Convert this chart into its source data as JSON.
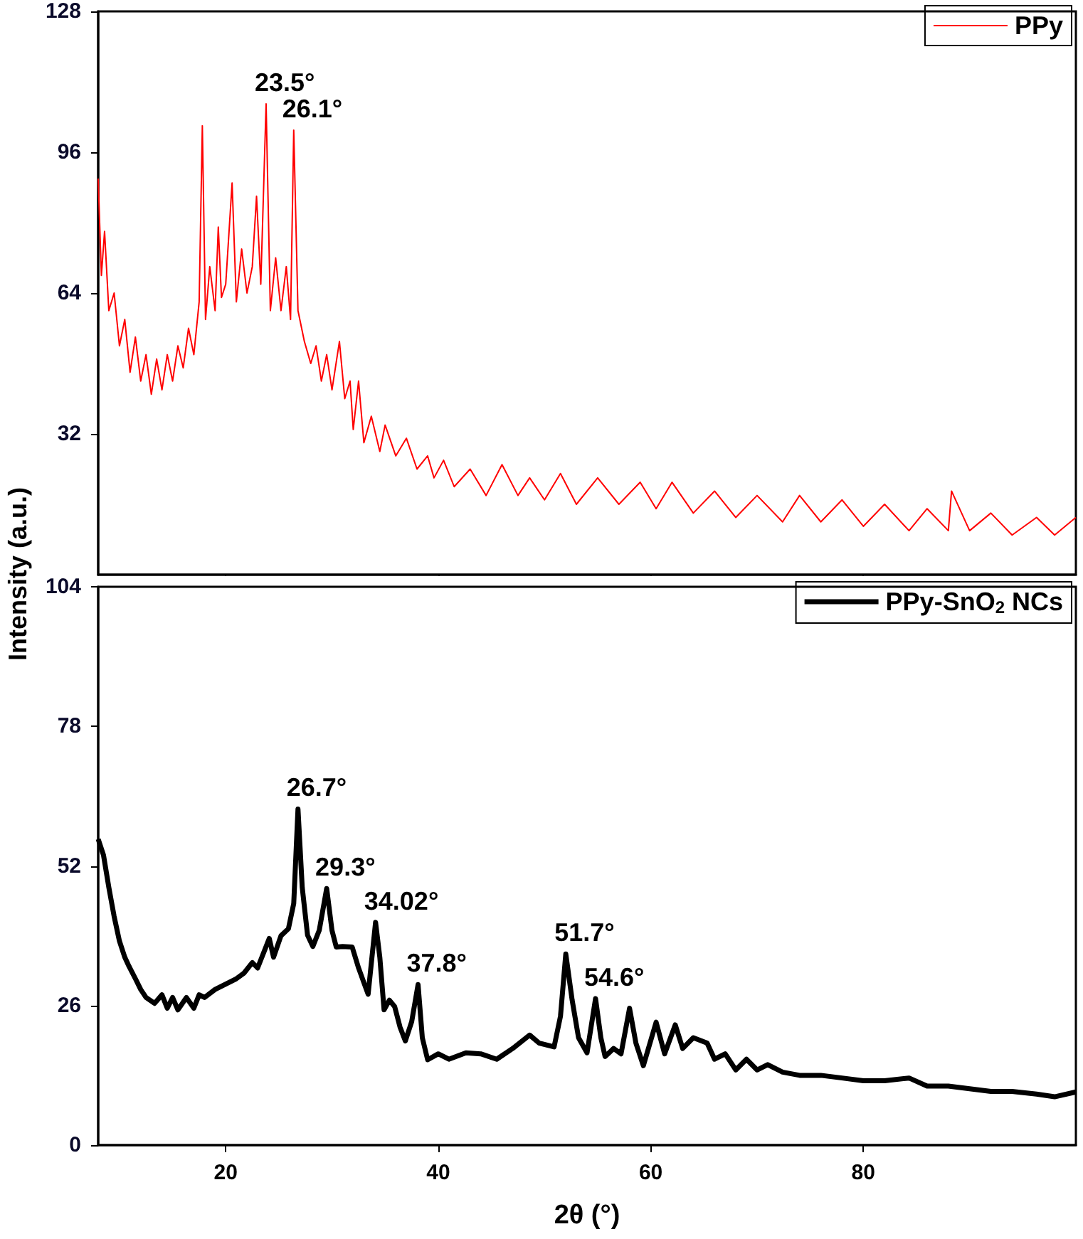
{
  "chart_data": [
    {
      "type": "line",
      "ylabel": "Intensity (a.u.)",
      "xlim": [
        8,
        100
      ],
      "xticks": [
        20,
        40,
        60,
        80
      ],
      "ylim": [
        0,
        128
      ],
      "yticks": [
        32,
        64,
        96,
        128
      ],
      "tick_labels": "y",
      "legend": "top right",
      "grid": false,
      "series": [
        {
          "name": "PPy",
          "color": "#ff0000",
          "x": [
            8,
            8.3,
            8.6,
            9,
            9.5,
            10,
            10.5,
            11,
            11.5,
            12,
            12.5,
            13,
            13.5,
            14,
            14.5,
            15,
            15.5,
            16,
            16.5,
            17,
            17.5,
            17.8,
            18.1,
            18.5,
            19,
            19.3,
            19.6,
            20,
            20.6,
            21,
            21.5,
            22,
            22.5,
            22.9,
            23.3,
            23.8,
            24.2,
            24.7,
            25.2,
            25.7,
            26.1,
            26.4,
            26.8,
            27.4,
            28,
            28.5,
            29,
            29.5,
            30,
            30.7,
            31.2,
            31.7,
            32,
            32.5,
            33,
            33.7,
            34.5,
            35,
            36,
            37,
            38,
            39,
            39.6,
            40.5,
            41.5,
            43,
            44.5,
            46,
            47.5,
            48.6,
            50,
            51.5,
            53,
            55,
            57,
            59,
            60.5,
            62,
            64,
            66,
            68,
            70,
            72.4,
            74,
            76,
            78,
            80,
            82,
            84.3,
            86,
            88,
            88.3,
            90,
            92,
            94,
            96.3,
            98,
            100
          ],
          "values": [
            90,
            68,
            78,
            60,
            64,
            52,
            58,
            46,
            54,
            44,
            50,
            41,
            49,
            42,
            50,
            44,
            52,
            47,
            56,
            50,
            62,
            102,
            58,
            70,
            60,
            79,
            63,
            66,
            89,
            62,
            74,
            64,
            70,
            86,
            66,
            107,
            60,
            72,
            60,
            70,
            58,
            101,
            60,
            53,
            48,
            52,
            44,
            50,
            42,
            53,
            40,
            44,
            33,
            44,
            30,
            36,
            28,
            34,
            27,
            31,
            24,
            27,
            22,
            26,
            20,
            24,
            18,
            25,
            18,
            22,
            17,
            23,
            16,
            22,
            16,
            21,
            15,
            21,
            14,
            19,
            13,
            18,
            12,
            18,
            12,
            17,
            11,
            16,
            10,
            15,
            10,
            19,
            10,
            14,
            9,
            13,
            9,
            13
          ]
        }
      ],
      "annotations": [
        {
          "text": "23.5°",
          "x": 23.8,
          "y": 107
        },
        {
          "text": "26.1°",
          "x": 26.4,
          "y": 101
        }
      ]
    },
    {
      "type": "line",
      "xlabel": "2θ (°)",
      "xlim": [
        8,
        100
      ],
      "xticks": [
        20,
        40,
        60,
        80
      ],
      "ylim": [
        0,
        104
      ],
      "yticks": [
        0,
        26,
        52,
        78,
        104
      ],
      "legend": "top right",
      "grid": false,
      "series": [
        {
          "name": "PPy-SnO$_{2}$ NCs",
          "color": "#000000",
          "x": [
            8,
            8.5,
            9,
            9.5,
            10,
            10.5,
            10.9,
            11.5,
            12,
            12.5,
            13.3,
            14,
            14.5,
            15,
            15.5,
            16.3,
            17,
            17.5,
            18,
            19,
            20,
            21,
            21.7,
            22.5,
            23,
            24.1,
            24.5,
            25.2,
            25.9,
            26.4,
            26.8,
            27.2,
            27.7,
            28.2,
            28.8,
            29.5,
            30,
            30.4,
            31,
            31.9,
            32.5,
            33.4,
            34.1,
            34.5,
            34.9,
            35.4,
            35.9,
            36.4,
            36.9,
            37.5,
            38.1,
            38.5,
            39,
            40,
            41,
            42.6,
            44,
            45.5,
            47,
            48.6,
            49.5,
            50.9,
            51.5,
            52,
            52.6,
            53.2,
            54,
            54.8,
            55.3,
            55.7,
            56.5,
            57.2,
            58,
            58.6,
            59.3,
            60.5,
            61.3,
            62.3,
            63,
            64,
            65.3,
            66,
            67,
            68,
            69,
            70,
            71,
            72.4,
            74,
            76,
            78,
            80,
            82,
            84.3,
            86,
            88,
            90,
            92,
            94,
            96.3,
            98,
            100
          ],
          "values": [
            57,
            54,
            48,
            42.6,
            38,
            35,
            33.3,
            31,
            29,
            27.5,
            26.4,
            28,
            25.5,
            27.5,
            25.2,
            27.5,
            25.5,
            28,
            27.5,
            29,
            30,
            31,
            32,
            34,
            33,
            38.5,
            35,
            39,
            40.3,
            45,
            62.6,
            48,
            39.1,
            37,
            40,
            47.8,
            40,
            36.9,
            37,
            36.9,
            33,
            28.1,
            41.5,
            35,
            25.2,
            27,
            25.8,
            22,
            19.4,
            23,
            29.9,
            20,
            15.9,
            17,
            16,
            17.2,
            17,
            16,
            18,
            20.5,
            19,
            18.3,
            24,
            35.6,
            27,
            20,
            17.2,
            27.3,
            20,
            16.5,
            18,
            17,
            25.5,
            19,
            14.8,
            22.9,
            17,
            22.4,
            18,
            20,
            19,
            16,
            17,
            14,
            16,
            14,
            15,
            13.6,
            13,
            13,
            12.5,
            12,
            12,
            12.5,
            11,
            11,
            10.5,
            10,
            10,
            9.5,
            9,
            9.9
          ]
        }
      ],
      "annotations": [
        {
          "text": "26.7°",
          "x": 26.8,
          "y": 62.6
        },
        {
          "text": "29.3°",
          "x": 29.5,
          "y": 47.8
        },
        {
          "text": "34.02°",
          "x": 34.1,
          "y": 41.5
        },
        {
          "text": "37.8°",
          "x": 38.1,
          "y": 29.9
        },
        {
          "text": "51.7°",
          "x": 52,
          "y": 35.6
        },
        {
          "text": "54.6°",
          "x": 54.8,
          "y": 27.3
        }
      ]
    }
  ]
}
